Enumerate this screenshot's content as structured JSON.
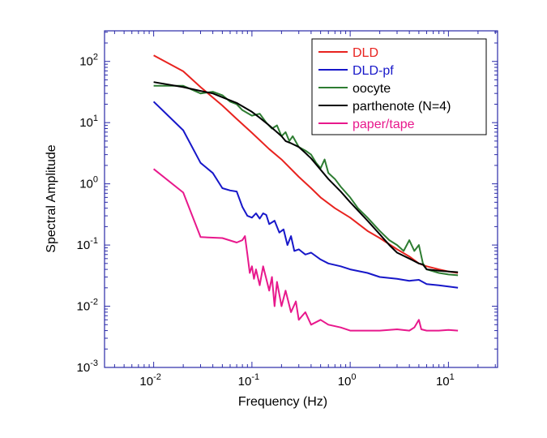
{
  "chart_data": {
    "type": "line",
    "xscale": "log",
    "yscale": "log",
    "xlabel": "Frequency (Hz)",
    "ylabel": "Spectral Amplitude",
    "xlim": [
      0.003162,
      31.62
    ],
    "ylim": [
      0.001,
      316.2
    ],
    "x_ticks": [
      {
        "base": "10",
        "exp": "-2",
        "value": 0.01
      },
      {
        "base": "10",
        "exp": "-1",
        "value": 0.1
      },
      {
        "base": "10",
        "exp": "0",
        "value": 1
      },
      {
        "base": "10",
        "exp": "1",
        "value": 10
      }
    ],
    "y_ticks": [
      {
        "base": "10",
        "exp": "2",
        "value": 100
      },
      {
        "base": "10",
        "exp": "1",
        "value": 10
      },
      {
        "base": "10",
        "exp": "0",
        "value": 1
      },
      {
        "base": "10",
        "exp": "-1",
        "value": 0.1
      },
      {
        "base": "10",
        "exp": "-2",
        "value": 0.01
      },
      {
        "base": "10",
        "exp": "-3",
        "value": 0.001
      }
    ],
    "legend_position": "top-right",
    "series": [
      {
        "name": "DLD",
        "color": "#e8231f",
        "x": [
          0.01,
          0.02,
          0.03,
          0.05,
          0.07,
          0.1,
          0.15,
          0.2,
          0.3,
          0.4,
          0.5,
          0.7,
          1.0,
          1.5,
          2.0,
          3.0,
          4.0,
          5.0,
          6.0,
          8.0,
          10.0,
          12.5
        ],
        "y": [
          126,
          69,
          38,
          19,
          11.5,
          6.8,
          3.7,
          2.5,
          1.3,
          0.85,
          0.6,
          0.4,
          0.28,
          0.17,
          0.13,
          0.085,
          0.065,
          0.05,
          0.045,
          0.04,
          0.037,
          0.035
        ]
      },
      {
        "name": "DLD-pf",
        "color": "#1717c9",
        "x": [
          0.01,
          0.02,
          0.03,
          0.04,
          0.05,
          0.06,
          0.07,
          0.08,
          0.09,
          0.1,
          0.11,
          0.12,
          0.13,
          0.14,
          0.15,
          0.17,
          0.19,
          0.21,
          0.23,
          0.25,
          0.27,
          0.3,
          0.35,
          0.4,
          0.5,
          0.6,
          0.8,
          1.0,
          1.5,
          2.0,
          3.0,
          4.0,
          5.0,
          6.0,
          8.0,
          10.0,
          12.5
        ],
        "y": [
          22,
          7.5,
          2.2,
          1.5,
          0.85,
          0.78,
          0.75,
          0.42,
          0.3,
          0.28,
          0.33,
          0.27,
          0.33,
          0.31,
          0.22,
          0.25,
          0.16,
          0.18,
          0.1,
          0.14,
          0.08,
          0.085,
          0.07,
          0.075,
          0.058,
          0.05,
          0.045,
          0.04,
          0.035,
          0.03,
          0.028,
          0.026,
          0.027,
          0.023,
          0.022,
          0.021,
          0.02
        ]
      },
      {
        "name": "oocyte",
        "color": "#2e7d32",
        "x": [
          0.01,
          0.02,
          0.03,
          0.04,
          0.05,
          0.06,
          0.07,
          0.08,
          0.1,
          0.12,
          0.14,
          0.16,
          0.18,
          0.2,
          0.22,
          0.24,
          0.26,
          0.3,
          0.35,
          0.4,
          0.45,
          0.5,
          0.55,
          0.6,
          0.7,
          0.8,
          1.0,
          1.2,
          1.5,
          2.0,
          2.5,
          3.0,
          3.5,
          4.0,
          4.5,
          5.0,
          5.5,
          6.0,
          8.0,
          10.0,
          12.5
        ],
        "y": [
          40,
          40,
          30,
          32,
          28,
          22,
          20,
          16,
          13,
          14,
          10,
          8,
          9,
          6,
          7,
          5,
          6,
          4,
          3.5,
          3,
          2.2,
          1.8,
          2.5,
          1.5,
          1.2,
          0.9,
          0.6,
          0.4,
          0.28,
          0.17,
          0.12,
          0.1,
          0.08,
          0.12,
          0.08,
          0.1,
          0.05,
          0.04,
          0.035,
          0.033,
          0.032
        ]
      },
      {
        "name": "parthenote (N=4)",
        "color": "#000000",
        "x": [
          0.01,
          0.02,
          0.03,
          0.04,
          0.05,
          0.07,
          0.1,
          0.12,
          0.15,
          0.2,
          0.22,
          0.25,
          0.3,
          0.35,
          0.4,
          0.5,
          0.6,
          0.8,
          1.0,
          1.5,
          2.0,
          2.5,
          3.0,
          4.0,
          5.0,
          5.5,
          6.0,
          8.0,
          10.0,
          12.5
        ],
        "y": [
          46,
          38,
          33,
          30,
          26,
          21,
          15,
          12,
          9,
          6,
          5,
          4.6,
          4,
          3.2,
          2.6,
          1.7,
          1.2,
          0.75,
          0.5,
          0.25,
          0.15,
          0.1,
          0.075,
          0.06,
          0.05,
          0.048,
          0.04,
          0.038,
          0.037,
          0.036
        ]
      },
      {
        "name": "paper/tape",
        "color": "#e8188c",
        "x": [
          0.01,
          0.02,
          0.03,
          0.05,
          0.07,
          0.08,
          0.085,
          0.09,
          0.095,
          0.1,
          0.105,
          0.11,
          0.12,
          0.13,
          0.14,
          0.15,
          0.16,
          0.17,
          0.18,
          0.2,
          0.22,
          0.25,
          0.28,
          0.3,
          0.35,
          0.4,
          0.5,
          0.6,
          0.8,
          1.0,
          2.0,
          3.0,
          4.0,
          4.5,
          5.0,
          5.3,
          6.0,
          8.0,
          10.0,
          12.5
        ],
        "y": [
          1.75,
          0.72,
          0.135,
          0.13,
          0.11,
          0.12,
          0.14,
          0.07,
          0.035,
          0.045,
          0.028,
          0.04,
          0.022,
          0.045,
          0.028,
          0.018,
          0.03,
          0.01,
          0.025,
          0.01,
          0.018,
          0.008,
          0.012,
          0.006,
          0.008,
          0.005,
          0.006,
          0.005,
          0.0045,
          0.004,
          0.004,
          0.0042,
          0.004,
          0.0045,
          0.006,
          0.0042,
          0.004,
          0.004,
          0.0041,
          0.004
        ]
      }
    ]
  }
}
